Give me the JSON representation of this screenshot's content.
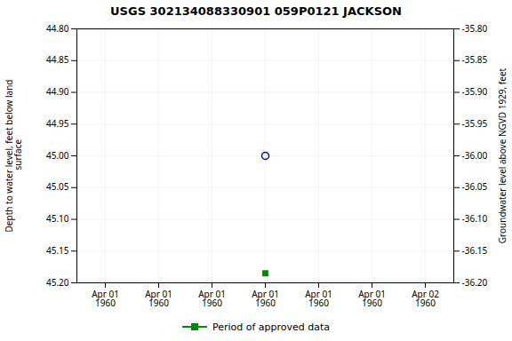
{
  "chart_data": {
    "type": "scatter",
    "title": "USGS 302134088330901 059P0121  JACKSON",
    "y_label": "Depth to water level, feet below land\n surface",
    "y2_label": "Groundwater level above NGVD 1929, feet",
    "categories": [
      "Apr 01\n1960",
      "Apr 01\n1960",
      "Apr 01\n1960",
      "Apr 01\n1960",
      "Apr 01\n1960",
      "Apr 01\n1960",
      "Apr 02\n1960"
    ],
    "series": [
      {
        "color": "#0000cc",
        "marker": "open_circle",
        "values": [
          null,
          null,
          null,
          45.0,
          null,
          null,
          null
        ]
      },
      {
        "name": "Period of approved data",
        "color": "#008800",
        "marker": "square",
        "values": [
          null,
          null,
          null,
          45.185,
          null,
          null,
          null
        ]
      }
    ],
    "ylim": [
      45.2,
      44.8
    ],
    "yticks": [
      {
        "value": 44.8,
        "label": "44.80"
      },
      {
        "value": 44.85,
        "label": "44.85"
      },
      {
        "value": 44.9,
        "label": "44.90"
      },
      {
        "value": 44.95,
        "label": "44.95"
      },
      {
        "value": 45.0,
        "label": "45.00"
      },
      {
        "value": 45.05,
        "label": "45.05"
      },
      {
        "value": 45.1,
        "label": "45.10"
      },
      {
        "value": 45.15,
        "label": "45.15"
      },
      {
        "value": 45.2,
        "label": "45.20"
      }
    ],
    "y2lim": [
      -36.2,
      -35.8
    ],
    "y2ticks": [
      {
        "value": -35.8,
        "label": "-35.80"
      },
      {
        "value": -35.85,
        "label": "-35.85"
      },
      {
        "value": -35.9,
        "label": "-35.90"
      },
      {
        "value": -35.95,
        "label": "-35.95"
      },
      {
        "value": -36.0,
        "label": "-36.00"
      },
      {
        "value": -36.05,
        "label": "-36.05"
      },
      {
        "value": -36.1,
        "label": "-36.10"
      },
      {
        "value": -36.15,
        "label": "-36.15"
      },
      {
        "value": -36.2,
        "label": "-36.20"
      }
    ],
    "grid": true,
    "legend": "bottom"
  }
}
